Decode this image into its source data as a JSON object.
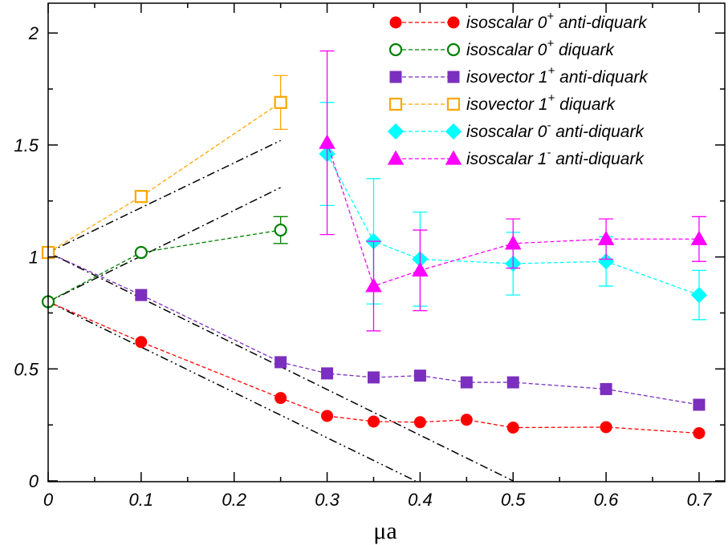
{
  "chart_data": {
    "type": "scatter",
    "xlabel": "μa",
    "ylabel": "",
    "title": "",
    "xlim": [
      0,
      0.73
    ],
    "ylim": [
      0,
      2.15
    ],
    "x_ticks": [
      0,
      0.1,
      0.2,
      0.3,
      0.4,
      0.5,
      0.6,
      0.7
    ],
    "x_tick_labels": [
      "0",
      "0.1",
      "0.2",
      "0.3",
      "0.4",
      "0.5",
      "0.6",
      "0.7"
    ],
    "y_ticks": [
      0,
      0.5,
      1,
      1.5,
      2
    ],
    "y_tick_labels": [
      "0",
      "0.5",
      "1",
      "1.5",
      "2"
    ],
    "legend_position": "top-right",
    "series": [
      {
        "name": "isoscalar 0",
        "sup": "+",
        "rest": " anti-diquark",
        "color": "#ff0000",
        "marker": "circle",
        "filled": true,
        "points": [
          {
            "x": 0,
            "y": 0.8,
            "err": 0
          },
          {
            "x": 0.1,
            "y": 0.62,
            "err": 0
          },
          {
            "x": 0.25,
            "y": 0.37,
            "err": 0
          },
          {
            "x": 0.3,
            "y": 0.29,
            "err": 0
          },
          {
            "x": 0.35,
            "y": 0.265,
            "err": 0
          },
          {
            "x": 0.4,
            "y": 0.262,
            "err": 0
          },
          {
            "x": 0.45,
            "y": 0.273,
            "err": 0
          },
          {
            "x": 0.5,
            "y": 0.238,
            "err": 0
          },
          {
            "x": 0.6,
            "y": 0.24,
            "err": 0
          },
          {
            "x": 0.7,
            "y": 0.213,
            "err": 0
          }
        ]
      },
      {
        "name": "isoscalar 0",
        "sup": "+",
        "rest": " diquark",
        "color": "#008000",
        "marker": "circle",
        "filled": false,
        "points": [
          {
            "x": 0,
            "y": 0.8,
            "err": 0
          },
          {
            "x": 0.1,
            "y": 1.02,
            "err": 0
          },
          {
            "x": 0.25,
            "y": 1.12,
            "err": 0.06
          }
        ]
      },
      {
        "name": "isovector 1",
        "sup": "+",
        "rest": " anti-diquark",
        "color": "#7b2fbe",
        "marker": "square",
        "filled": true,
        "points": [
          {
            "x": 0,
            "y": 1.02,
            "err": 0
          },
          {
            "x": 0.1,
            "y": 0.83,
            "err": 0
          },
          {
            "x": 0.25,
            "y": 0.53,
            "err": 0
          },
          {
            "x": 0.3,
            "y": 0.48,
            "err": 0
          },
          {
            "x": 0.35,
            "y": 0.462,
            "err": 0
          },
          {
            "x": 0.4,
            "y": 0.47,
            "err": 0
          },
          {
            "x": 0.45,
            "y": 0.44,
            "err": 0
          },
          {
            "x": 0.5,
            "y": 0.44,
            "err": 0
          },
          {
            "x": 0.6,
            "y": 0.41,
            "err": 0
          },
          {
            "x": 0.7,
            "y": 0.34,
            "err": 0
          }
        ]
      },
      {
        "name": "isovector 1",
        "sup": "+",
        "rest": " diquark",
        "color": "#ffa500",
        "marker": "square",
        "filled": false,
        "points": [
          {
            "x": 0,
            "y": 1.02,
            "err": 0
          },
          {
            "x": 0.1,
            "y": 1.27,
            "err": 0
          },
          {
            "x": 0.25,
            "y": 1.69,
            "err": 0.12
          }
        ]
      },
      {
        "name": "isoscalar 0",
        "sup": "-",
        "rest": " anti-diquark",
        "color": "#00ffff",
        "marker": "diamond",
        "filled": true,
        "points": [
          {
            "x": 0.3,
            "y": 1.46,
            "err": 0.23
          },
          {
            "x": 0.35,
            "y": 1.07,
            "err": 0.28
          },
          {
            "x": 0.4,
            "y": 0.99,
            "err": 0.21
          },
          {
            "x": 0.5,
            "y": 0.97,
            "err": 0.14
          },
          {
            "x": 0.6,
            "y": 0.98,
            "err": 0.11
          },
          {
            "x": 0.7,
            "y": 0.83,
            "err": 0.11
          }
        ]
      },
      {
        "name": "isoscalar 1",
        "sup": "-",
        "rest": " anti-diquark",
        "color": "#ff00ff",
        "marker": "triangle",
        "filled": true,
        "points": [
          {
            "x": 0.3,
            "y": 1.51,
            "err": 0.41
          },
          {
            "x": 0.35,
            "y": 0.87,
            "err": 0.2
          },
          {
            "x": 0.4,
            "y": 0.94,
            "err": 0.18
          },
          {
            "x": 0.5,
            "y": 1.06,
            "err": 0.11
          },
          {
            "x": 0.6,
            "y": 1.08,
            "err": 0.09
          },
          {
            "x": 0.7,
            "y": 1.08,
            "err": 0.1
          }
        ]
      }
    ],
    "reference_lines": [
      {
        "style": "dash-dot-dot",
        "x1": 0,
        "y1": 0.8,
        "x2": 0.395,
        "y2": 0
      },
      {
        "style": "dash-dot",
        "x1": 0,
        "y1": 1.02,
        "x2": 0.5,
        "y2": 0
      },
      {
        "style": "dash-dot",
        "x1": 0,
        "y1": 0.8,
        "x2": 0.25,
        "y2": 1.31
      },
      {
        "style": "dash-dot",
        "x1": 0,
        "y1": 1.02,
        "x2": 0.25,
        "y2": 1.52
      }
    ]
  }
}
